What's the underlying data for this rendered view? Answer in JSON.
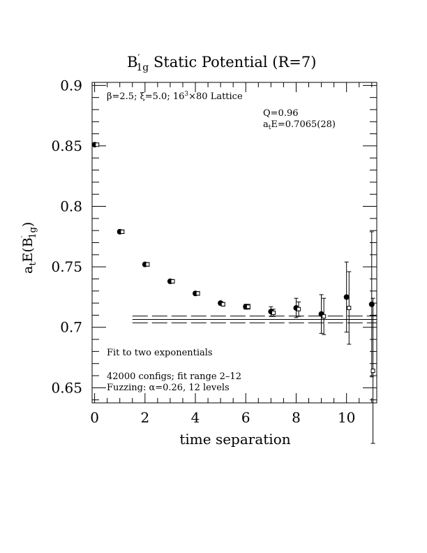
{
  "chart_data": {
    "type": "scatter",
    "title": {
      "base": "B",
      "sub": "1g",
      "rest": " Static Potential (R=7)"
    },
    "xlabel": "time separation",
    "ylabel": {
      "pre": "a",
      "pre_sub": "t",
      "mid": "E(B",
      "sub": "1g",
      "post": ")"
    },
    "xlim": [
      -0.1,
      11.2
    ],
    "ylim": [
      0.6375,
      0.9025
    ],
    "x_ticks": [
      0,
      2,
      4,
      6,
      8,
      10
    ],
    "x_tick_labels": [
      "0",
      "2",
      "4",
      "6",
      "8",
      "10"
    ],
    "y_ticks": [
      0.65,
      0.7,
      0.75,
      0.8,
      0.85,
      0.9
    ],
    "y_tick_labels": [
      "0.65",
      "0.7",
      "0.75",
      "0.8",
      "0.85",
      "0.9"
    ],
    "annotations": {
      "lattice": {
        "pre": "β=2.5; ξ=5.0; 16",
        "sup": "3",
        "post": "×80 Lattice"
      },
      "q": "Q=0.96",
      "energy": {
        "pre": "a",
        "sub": "t",
        "post": "E=0.7065(28)"
      },
      "fit_type": "Fit to two exponentials",
      "configs": "42000 configs; fit range 2–12",
      "fuzzing": "Fuzzing: α=0.26, 12 levels"
    },
    "series": [
      {
        "marker": "filled-circle",
        "x": [
          0,
          1,
          2,
          3,
          4,
          5,
          6,
          7,
          8,
          9,
          10,
          11
        ],
        "y": [
          0.851,
          0.779,
          0.752,
          0.738,
          0.728,
          0.72,
          0.717,
          0.713,
          0.716,
          0.711,
          0.725,
          0.719
        ],
        "err": [
          0.001,
          0.0015,
          0.0015,
          0.0015,
          0.0015,
          0.0015,
          0.002,
          0.004,
          0.008,
          0.016,
          0.029,
          0.06
        ]
      },
      {
        "marker": "open-square",
        "x": [
          0.1,
          1.1,
          2.1,
          3.1,
          4.1,
          5.1,
          6.1,
          7.1,
          8.1,
          9.1,
          10.1,
          11.05
        ],
        "y": [
          0.851,
          0.779,
          0.752,
          0.738,
          0.728,
          0.719,
          0.717,
          0.712,
          0.715,
          0.709,
          0.716,
          0.664
        ],
        "err": [
          0.001,
          0.0015,
          0.0015,
          0.0015,
          0.0015,
          0.0015,
          0.002,
          0.003,
          0.006,
          0.015,
          0.03,
          0.06
        ]
      }
    ],
    "fit": {
      "x_range": [
        1.5,
        11.2
      ],
      "value": 0.7065,
      "error": 0.0028,
      "style": "dashed band with central line"
    }
  }
}
